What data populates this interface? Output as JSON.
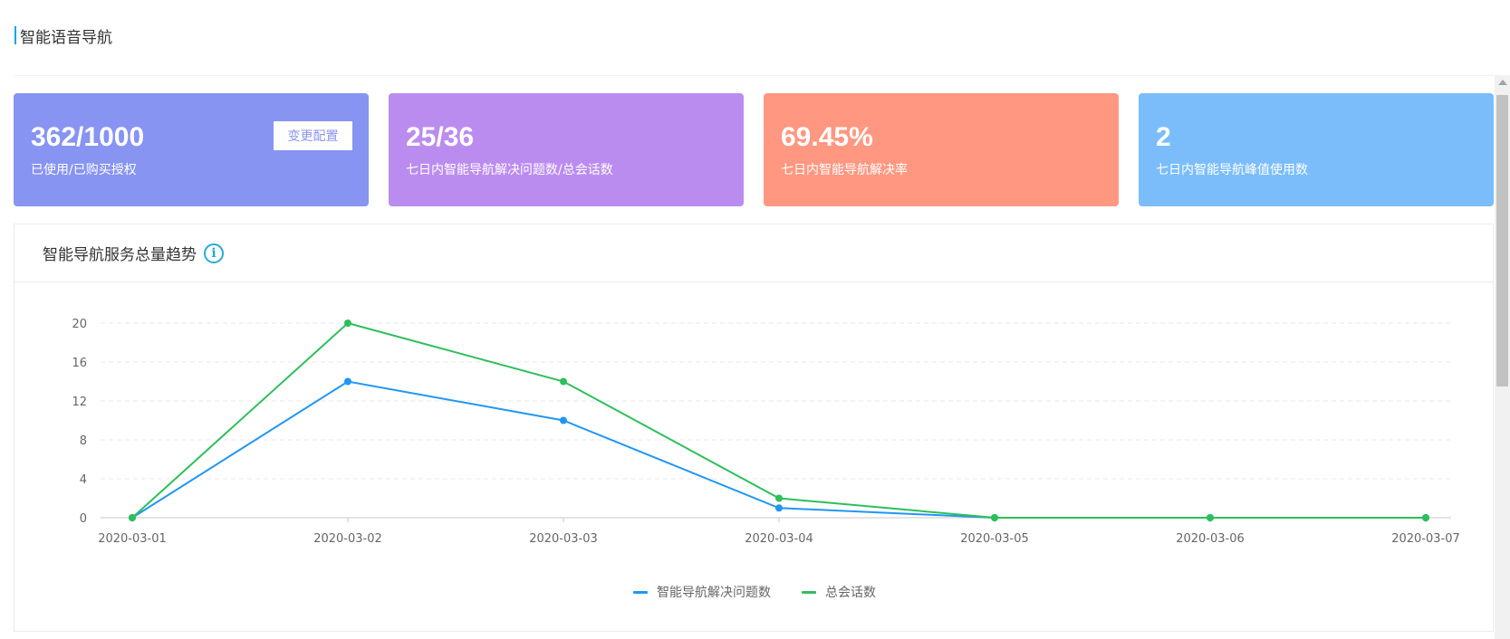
{
  "page": {
    "title": "智能语音导航"
  },
  "cards": [
    {
      "value": "362/1000",
      "label": "已使用/已购买授权",
      "color": "#8794f2",
      "button_label": "变更配置"
    },
    {
      "value": "25/36",
      "label": "七日内智能导航解决问题数/总会话数",
      "color": "#bb8cf0"
    },
    {
      "value": "69.45%",
      "label": "七日内智能导航解决率",
      "color": "#ff9781"
    },
    {
      "value": "2",
      "label": "七日内智能导航峰值使用数",
      "color": "#7bbdfb"
    }
  ],
  "chart_panel": {
    "title": "智能导航服务总量趋势",
    "info_icon": "info-circle-icon"
  },
  "chart_data": {
    "type": "line",
    "x": [
      "2020-03-01",
      "2020-03-02",
      "2020-03-03",
      "2020-03-04",
      "2020-03-05",
      "2020-03-06",
      "2020-03-07"
    ],
    "ylim": [
      0,
      20
    ],
    "yticks": [
      0,
      4,
      8,
      12,
      16,
      20
    ],
    "grid": true,
    "legend_position": "bottom-center",
    "series": [
      {
        "name": "智能导航解决问题数",
        "values": [
          0,
          14,
          10,
          1,
          0,
          0,
          0
        ],
        "color": "#2196f3"
      },
      {
        "name": "总会话数",
        "values": [
          0,
          20,
          14,
          2,
          0,
          0,
          0
        ],
        "color": "#2dbf5a"
      }
    ]
  }
}
